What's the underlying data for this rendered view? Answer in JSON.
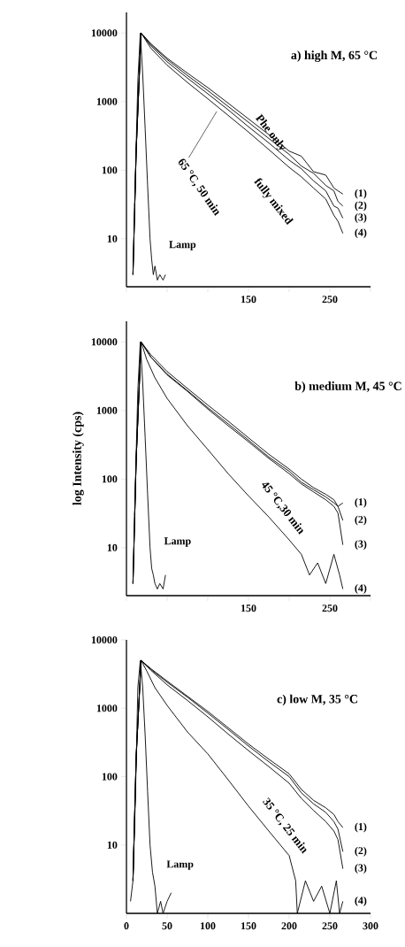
{
  "chart_data": [
    {
      "type": "line",
      "title": "a) high M, 65 °C",
      "log": "y",
      "xlim": [
        0,
        300
      ],
      "xticks": [
        {
          "value": 0,
          "label": null
        },
        {
          "value": 50,
          "label": null
        },
        {
          "value": 100,
          "label": null
        },
        150,
        {
          "value": 200,
          "label": null
        },
        250,
        {
          "value": 300,
          "label": null
        }
      ],
      "ylim": [
        2,
        20000
      ],
      "yticks": [
        10,
        100,
        1000,
        10000
      ],
      "annotations": [
        "Phe only",
        "fully mixed",
        {
          "text": "65 °C, 50 min",
          "x": 111,
          "y": 720
        }
      ],
      "series": [
        {
          "name": "Lamp",
          "color": "#000000",
          "x": [
            10,
            14,
            17,
            20,
            23,
            26,
            29,
            31,
            33,
            35,
            38,
            41,
            45,
            48
          ],
          "values": [
            30,
            2000,
            10000,
            2500,
            400,
            60,
            10,
            5,
            3,
            4,
            2.5,
            3,
            2.5,
            3
          ]
        },
        {
          "name": "(1)",
          "color": "#000000",
          "x": [
            8,
            12,
            18,
            30,
            50,
            75,
            100,
            125,
            150,
            175,
            200,
            215,
            230,
            245,
            255,
            260,
            266
          ],
          "values": [
            3,
            200,
            10000,
            7000,
            4300,
            2600,
            1600,
            950,
            560,
            330,
            190,
            160,
            95,
            85,
            55,
            50,
            45
          ]
        },
        {
          "name": "(2)",
          "color": "#000000",
          "x": [
            8,
            12,
            18,
            30,
            50,
            75,
            100,
            125,
            150,
            175,
            200,
            215,
            230,
            245,
            255,
            260,
            266
          ],
          "values": [
            3,
            200,
            10000,
            6800,
            4100,
            2400,
            1450,
            850,
            500,
            290,
            170,
            115,
            90,
            60,
            50,
            35,
            30
          ]
        },
        {
          "name": "(3)",
          "color": "#000000",
          "x": [
            8,
            12,
            18,
            30,
            50,
            75,
            100,
            125,
            150,
            175,
            200,
            215,
            230,
            245,
            255,
            260,
            266
          ],
          "values": [
            3,
            200,
            10000,
            6500,
            3800,
            2200,
            1300,
            760,
            430,
            250,
            140,
            105,
            70,
            50,
            30,
            28,
            20
          ]
        },
        {
          "name": "(4)",
          "color": "#000000",
          "x": [
            8,
            12,
            18,
            30,
            50,
            75,
            100,
            125,
            150,
            175,
            200,
            215,
            230,
            245,
            255,
            260,
            266
          ],
          "values": [
            3,
            200,
            10000,
            6000,
            3400,
            1900,
            1100,
            630,
            360,
            200,
            110,
            80,
            55,
            38,
            22,
            18,
            12
          ]
        }
      ]
    },
    {
      "type": "line",
      "title": "b) medium M, 45 °C",
      "ylabel": "log Intensity (cps)",
      "log": "y",
      "xlim": [
        0,
        300
      ],
      "xticks": [
        {
          "value": 0,
          "label": null
        },
        {
          "value": 50,
          "label": null
        },
        {
          "value": 100,
          "label": null
        },
        150,
        {
          "value": 200,
          "label": null
        },
        250,
        {
          "value": 300,
          "label": null
        }
      ],
      "ylim": [
        2,
        20000
      ],
      "yticks": [
        10,
        100,
        1000,
        10000
      ],
      "annotations": [
        "45 °C,30 min"
      ],
      "series": [
        {
          "name": "Lamp",
          "color": "#000000",
          "x": [
            10,
            14,
            17,
            20,
            23,
            26,
            29,
            31,
            33,
            35,
            38,
            41,
            45,
            48
          ],
          "values": [
            30,
            2000,
            10000,
            2500,
            400,
            60,
            10,
            5,
            4,
            3,
            2.5,
            3,
            2.5,
            4
          ]
        },
        {
          "name": "(1)",
          "color": "#000000",
          "x": [
            8,
            12,
            18,
            30,
            50,
            75,
            100,
            125,
            150,
            175,
            200,
            215,
            230,
            245,
            255,
            260,
            266
          ],
          "values": [
            3,
            200,
            10000,
            6500,
            3700,
            2100,
            1200,
            700,
            400,
            230,
            140,
            100,
            75,
            60,
            50,
            40,
            45
          ]
        },
        {
          "name": "(2)",
          "color": "#000000",
          "x": [
            8,
            12,
            18,
            30,
            50,
            75,
            100,
            125,
            150,
            175,
            200,
            215,
            230,
            245,
            255,
            260,
            266
          ],
          "values": [
            3,
            200,
            10000,
            6000,
            3400,
            1950,
            1100,
            640,
            370,
            210,
            130,
            90,
            70,
            55,
            45,
            40,
            25
          ]
        },
        {
          "name": "(3)",
          "color": "#000000",
          "x": [
            8,
            12,
            18,
            30,
            50,
            75,
            100,
            125,
            150,
            175,
            200,
            215,
            230,
            245,
            255,
            260,
            266
          ],
          "values": [
            3,
            200,
            10000,
            6000,
            3300,
            1900,
            1050,
            600,
            350,
            200,
            120,
            85,
            65,
            50,
            40,
            32,
            11
          ]
        },
        {
          "name": "(4)",
          "color": "#000000",
          "x": [
            8,
            12,
            18,
            25,
            35,
            50,
            75,
            100,
            125,
            150,
            175,
            200,
            215,
            225,
            235,
            245,
            255,
            262,
            266
          ],
          "values": [
            3,
            200,
            10000,
            5500,
            3000,
            1500,
            600,
            270,
            120,
            57,
            28,
            13,
            8,
            4,
            6,
            3,
            8,
            4,
            2.5
          ]
        }
      ]
    },
    {
      "type": "line",
      "title": "c) low M, 35 °C",
      "log": "y",
      "xlim": [
        0,
        300
      ],
      "xticks": [
        0,
        50,
        100,
        150,
        200,
        250,
        300
      ],
      "ylim": [
        1,
        10000
      ],
      "yticks": [
        10,
        100,
        1000,
        10000
      ],
      "annotations": [
        "35 °C, 25 min"
      ],
      "series": [
        {
          "name": "Lamp",
          "color": "#000000",
          "x": [
            5,
            8,
            11,
            14,
            17,
            20,
            23,
            26,
            29,
            32,
            35,
            38,
            42,
            45,
            50,
            55
          ],
          "values": [
            1.5,
            3,
            50,
            2000,
            5000,
            2000,
            400,
            60,
            10,
            4,
            2.5,
            1,
            1.5,
            1,
            1.5,
            2
          ]
        },
        {
          "name": "(1)",
          "color": "#000000",
          "x": [
            8,
            12,
            18,
            30,
            50,
            75,
            100,
            125,
            150,
            175,
            200,
            215,
            230,
            245,
            255,
            260,
            266
          ],
          "values": [
            3,
            200,
            5000,
            3800,
            2500,
            1500,
            900,
            520,
            300,
            180,
            110,
            65,
            45,
            35,
            28,
            22,
            18
          ]
        },
        {
          "name": "(2)",
          "color": "#000000",
          "x": [
            8,
            12,
            18,
            30,
            50,
            75,
            100,
            125,
            150,
            175,
            200,
            215,
            230,
            245,
            255,
            260,
            266
          ],
          "values": [
            3,
            200,
            5000,
            3700,
            2400,
            1450,
            850,
            490,
            280,
            165,
            100,
            58,
            40,
            30,
            22,
            17,
            8
          ]
        },
        {
          "name": "(3)",
          "color": "#000000",
          "x": [
            8,
            12,
            18,
            30,
            50,
            75,
            100,
            125,
            150,
            175,
            200,
            215,
            230,
            245,
            255,
            260,
            266
          ],
          "values": [
            3,
            200,
            5000,
            3600,
            2200,
            1300,
            750,
            420,
            240,
            140,
            80,
            48,
            32,
            22,
            16,
            12,
            4.5
          ]
        },
        {
          "name": "(4)",
          "color": "#000000",
          "x": [
            8,
            12,
            18,
            25,
            35,
            50,
            75,
            100,
            125,
            150,
            175,
            200,
            208,
            210,
            220,
            230,
            240,
            250,
            258,
            262,
            266
          ],
          "values": [
            3,
            200,
            5000,
            3500,
            2000,
            1100,
            450,
            215,
            90,
            37,
            16,
            7,
            3,
            1,
            3,
            1.5,
            2.5,
            1,
            3,
            1,
            1.5
          ]
        }
      ]
    }
  ]
}
